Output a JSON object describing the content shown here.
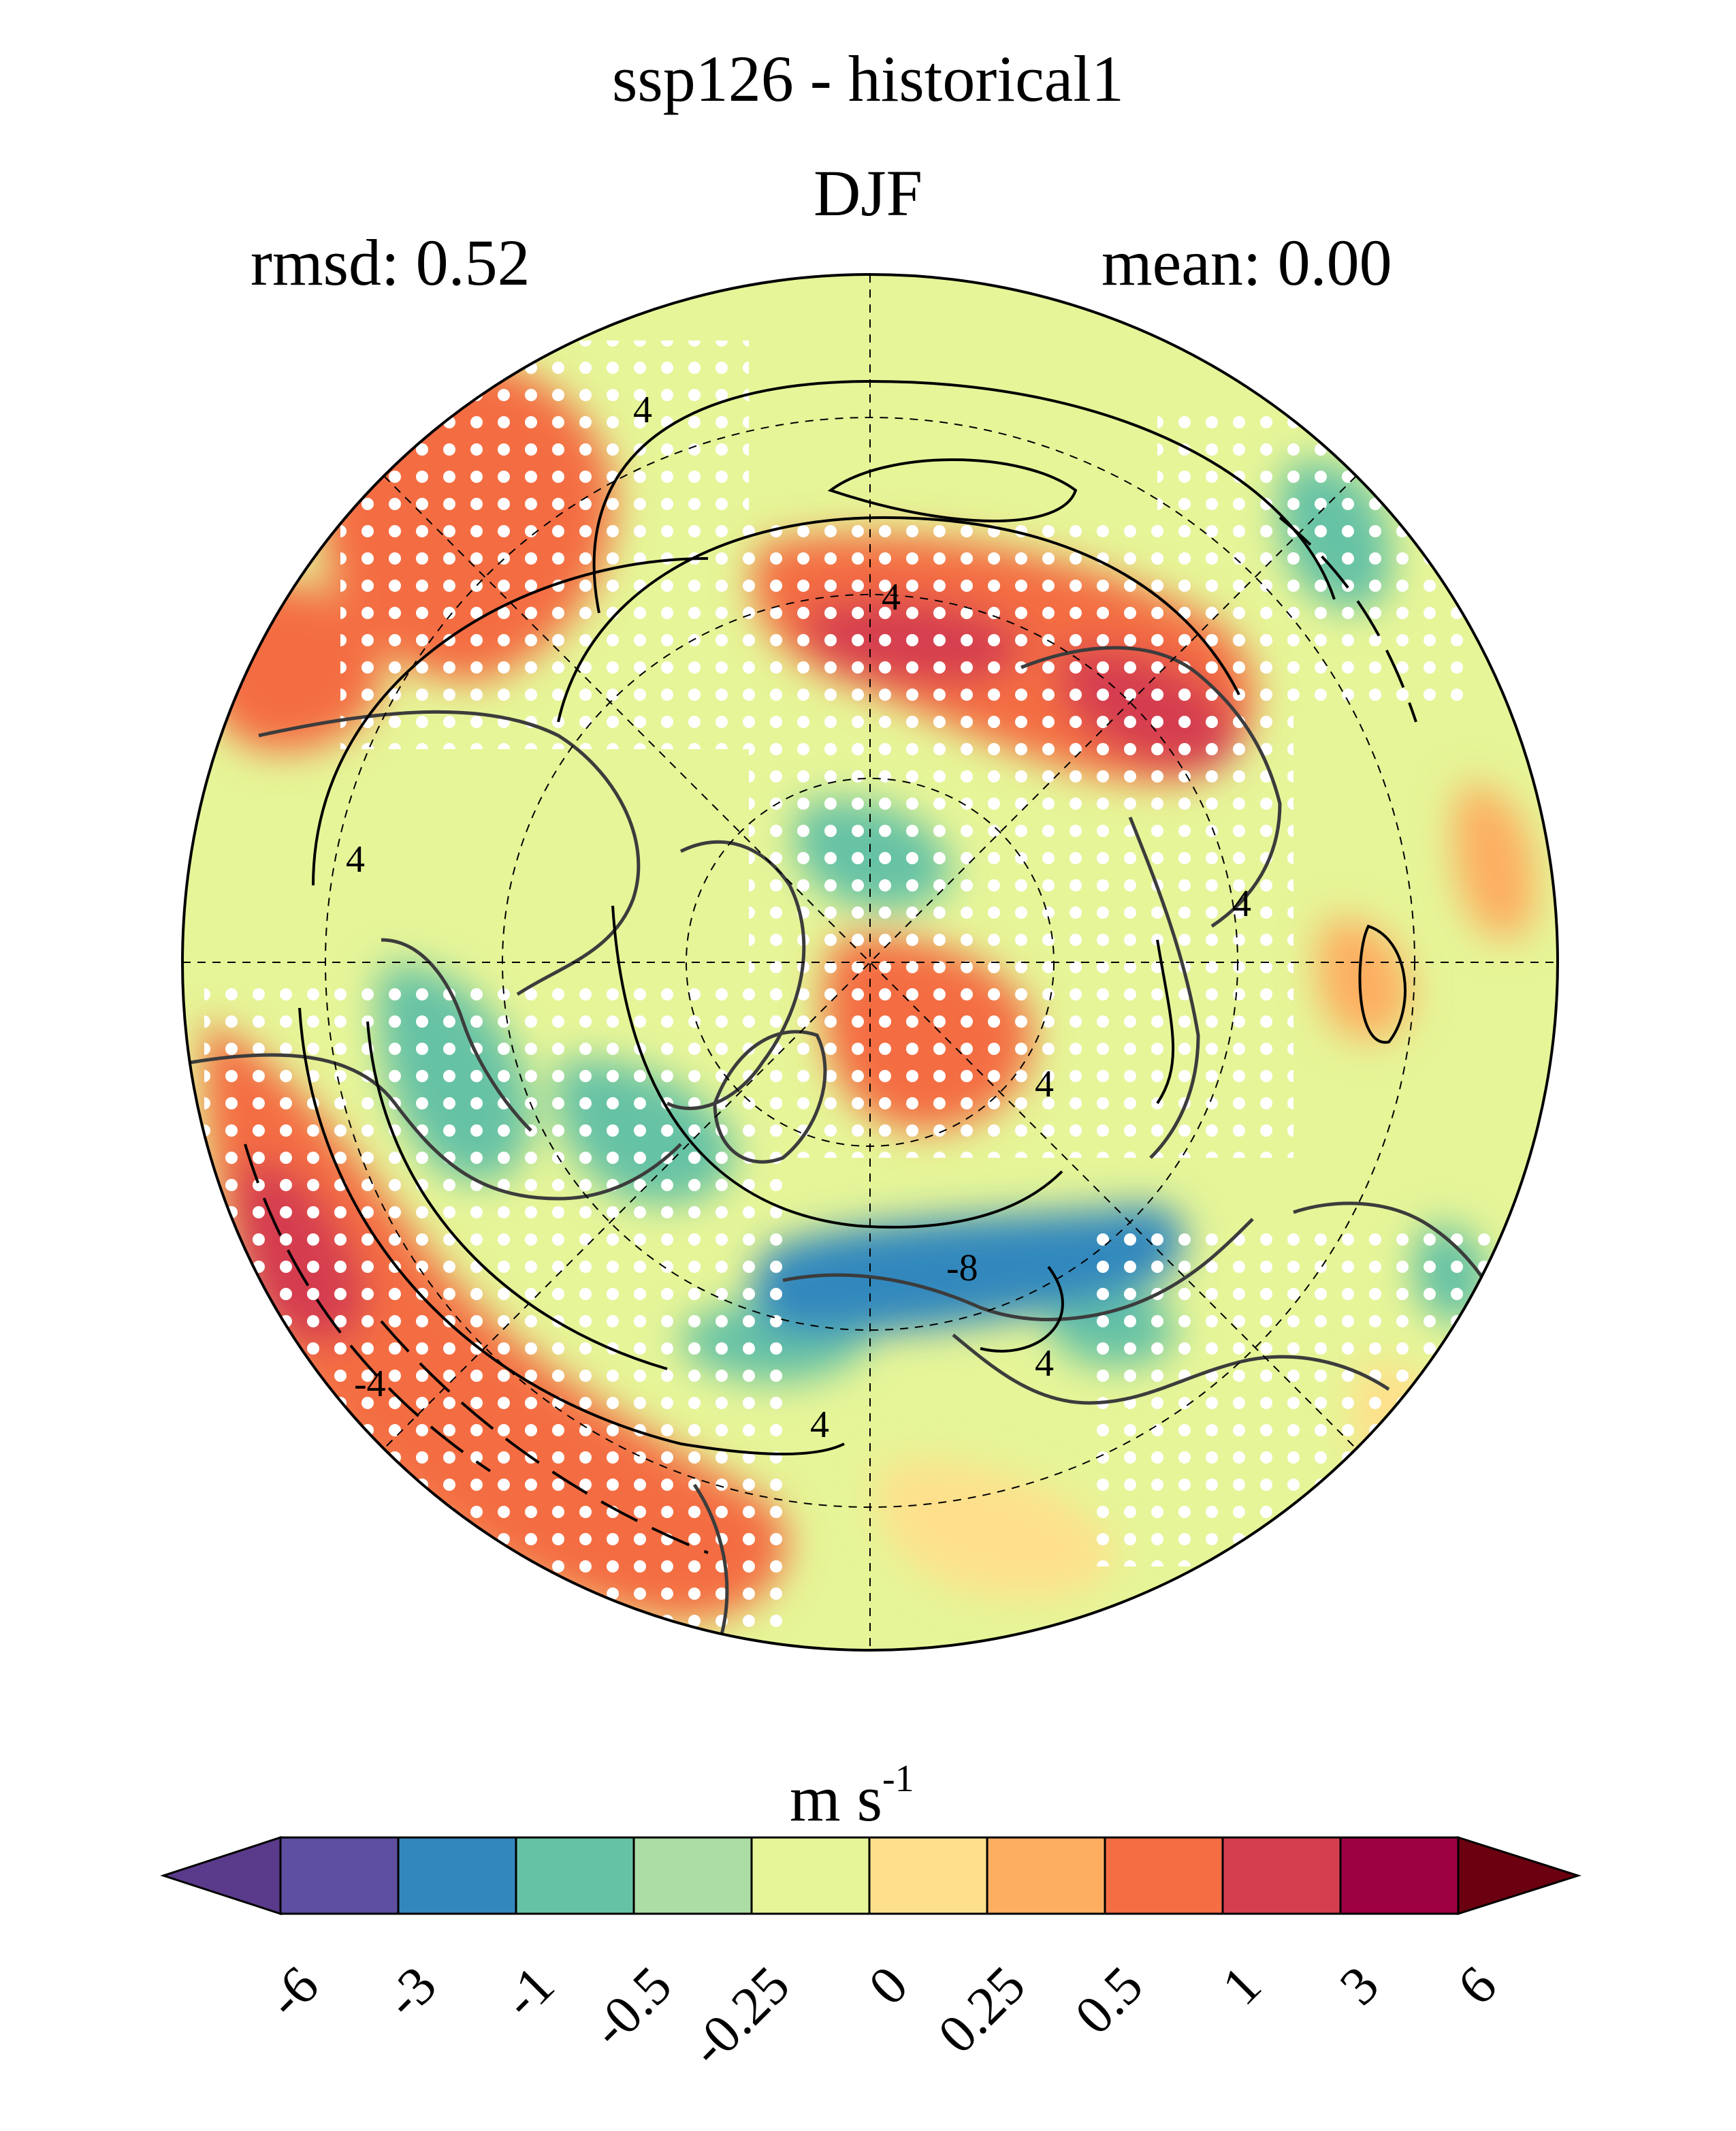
{
  "title": "ssp126 - historical1",
  "season": "DJF",
  "rmsd": "rmsd: 0.52",
  "mean": "mean: 0.00",
  "colorbar": {
    "units_base": "m s",
    "units_exp": "-1",
    "ticks": [
      "-6",
      "-3",
      "-1",
      "-0.5",
      "-0.25",
      "0",
      "0.25",
      "0.5",
      "1",
      "3",
      "6"
    ],
    "colors": [
      "#5e4fa2",
      "#3288bd",
      "#66c2a5",
      "#abdda4",
      "#e6f598",
      "#fee08b",
      "#fdae61",
      "#f46d43",
      "#d53e4f",
      "#9e0142"
    ],
    "under_color": "#5a3a8a",
    "over_color": "#6b0010"
  },
  "map": {
    "projection": "north-polar-stereographic",
    "contour_labels": [
      "4",
      "4",
      "4",
      "4",
      "4",
      "-4",
      "4",
      "4",
      "-8"
    ]
  }
}
